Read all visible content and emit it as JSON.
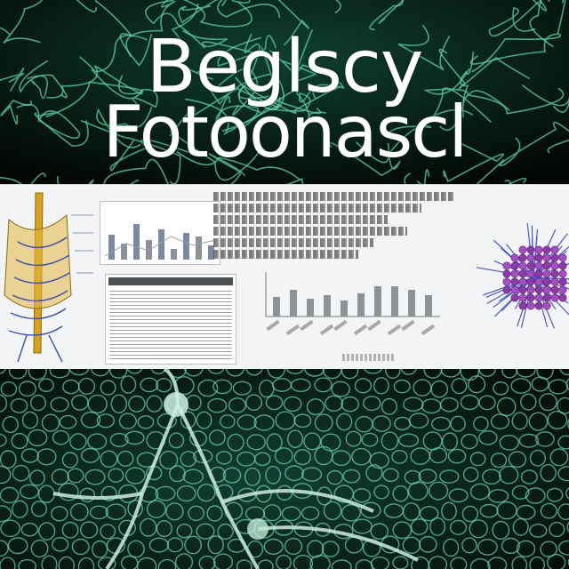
{
  "title": {
    "line1": "Beglscy",
    "line2": "Fotoonascl"
  },
  "colors": {
    "background": "#030806",
    "network_glow": "#5fd0ac",
    "panel": "#f3f4f5",
    "bar_blue": "#7b8aa3",
    "bar_gray": "#8d9296",
    "molecule_purple": "#8b3aa8",
    "molecule_blue": "#4a5bc8",
    "skeleton_yellow": "#d7a31e"
  },
  "icons": [
    "neuron-network",
    "skeleton-illustration",
    "bar-chart",
    "data-table",
    "molecule-illustration"
  ]
}
